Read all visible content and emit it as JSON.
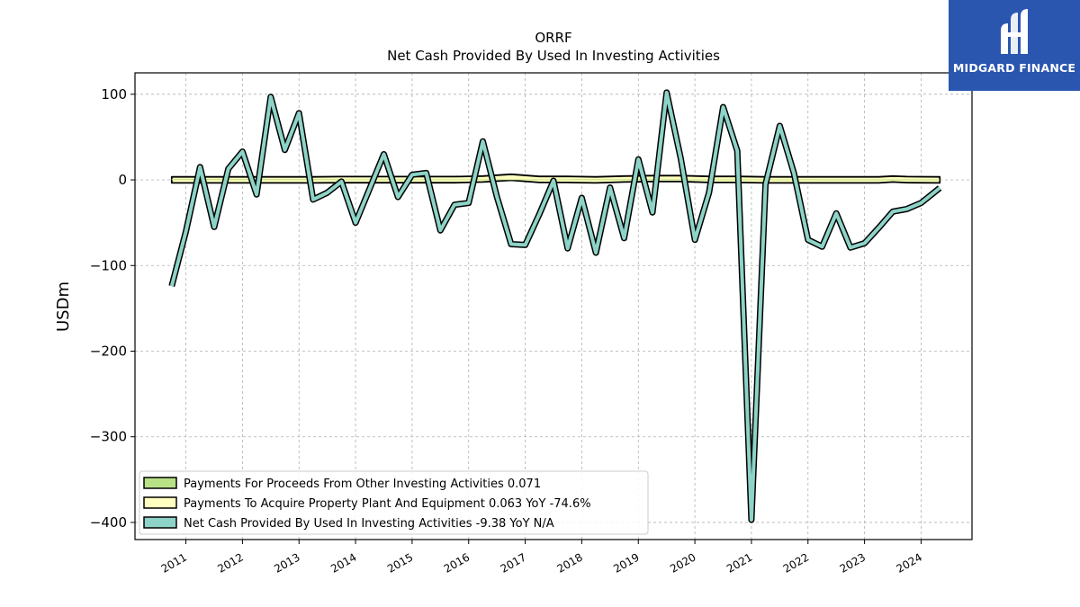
{
  "brand": {
    "name": "MIDGARD FINANCE",
    "color": "#2a56b0"
  },
  "chart_data": {
    "type": "line",
    "title": "ORRF",
    "subtitle": "Net Cash Provided By Used In Investing Activities",
    "ylabel": "USDm",
    "xlim": [
      2010.1,
      2024.9
    ],
    "ylim": [
      -420,
      125
    ],
    "yticks": [
      100,
      0,
      -100,
      -200,
      -300,
      -400
    ],
    "ytick_labels": [
      "100",
      "0",
      "−100",
      "−200",
      "−300",
      "−400"
    ],
    "xticks": [
      2011,
      2012,
      2013,
      2014,
      2015,
      2016,
      2017,
      2018,
      2019,
      2020,
      2021,
      2022,
      2023,
      2024
    ],
    "xtick_labels": [
      "2011",
      "2012",
      "2013",
      "2014",
      "2015",
      "2016",
      "2017",
      "2018",
      "2019",
      "2020",
      "2021",
      "2022",
      "2023",
      "2024"
    ],
    "grid": true,
    "legend_position": "lower-left",
    "series": [
      {
        "name": "Payments For Proceeds From Other Investing Activities",
        "legend": "Payments For Proceeds From Other Investing Activities  0.071",
        "style": "area",
        "color": "#b8e186",
        "x": [
          2010.75,
          2024.33
        ],
        "values": [
          0.5,
          0.071
        ]
      },
      {
        "name": "Payments To Acquire Property Plant And Equipment",
        "legend": "Payments To Acquire Property Plant And Equipment  0.063 YoY -74.6%",
        "style": "band",
        "color": "#ffffbf",
        "x": [
          2010.75,
          2011.25,
          2011.75,
          2012.25,
          2012.75,
          2013.25,
          2013.75,
          2014.25,
          2014.75,
          2015.25,
          2015.75,
          2016.25,
          2016.75,
          2017.25,
          2017.75,
          2018.25,
          2018.75,
          2019.25,
          2019.75,
          2020.25,
          2020.75,
          2021.25,
          2021.75,
          2022.25,
          2022.75,
          2023.25,
          2023.5,
          2023.75,
          2024.33
        ],
        "upper": [
          3.5,
          3.5,
          3.5,
          3.5,
          3.5,
          3.5,
          3.8,
          3.8,
          3.8,
          3.8,
          3.8,
          4.5,
          6.5,
          4.0,
          4.0,
          3.5,
          4.5,
          5.0,
          5.0,
          4.0,
          4.0,
          3.5,
          3.5,
          3.5,
          3.5,
          3.5,
          4.5,
          3.8,
          3.5
        ],
        "lower": [
          -3.5,
          -3.5,
          -3.5,
          -3.5,
          -3.5,
          -3.5,
          -3.3,
          -3.3,
          -3.3,
          -3.3,
          -3.3,
          -2.5,
          -0.5,
          -3.0,
          -3.0,
          -3.5,
          -2.5,
          -2.0,
          -2.0,
          -3.0,
          -3.0,
          -3.5,
          -3.5,
          -3.5,
          -3.5,
          -3.5,
          -2.5,
          -3.2,
          -3.5
        ]
      },
      {
        "name": "Net Cash Provided By Used In Investing Activities",
        "legend": "Net Cash Provided By Used In Investing Activities  -9.38 YoY N/A",
        "style": "line",
        "color": "#8dd3c7",
        "x": [
          2010.75,
          2011.0,
          2011.25,
          2011.5,
          2011.75,
          2012.0,
          2012.25,
          2012.5,
          2012.75,
          2013.0,
          2013.25,
          2013.5,
          2013.75,
          2014.0,
          2014.25,
          2014.5,
          2014.75,
          2015.0,
          2015.25,
          2015.5,
          2015.75,
          2016.0,
          2016.25,
          2016.5,
          2016.75,
          2017.0,
          2017.25,
          2017.5,
          2017.75,
          2018.0,
          2018.25,
          2018.5,
          2018.75,
          2019.0,
          2019.25,
          2019.5,
          2019.75,
          2020.0,
          2020.25,
          2020.5,
          2020.75,
          2021.0,
          2021.25,
          2021.5,
          2021.75,
          2022.0,
          2022.25,
          2022.5,
          2022.75,
          2023.0,
          2023.25,
          2023.5,
          2023.75,
          2024.0,
          2024.33
        ],
        "values": [
          -124,
          -60,
          15,
          -55,
          13,
          33,
          -17,
          97,
          35,
          78,
          -23,
          -15,
          -2,
          -50,
          -10,
          30,
          -20,
          6,
          8,
          -59,
          -29,
          -27,
          45,
          -20,
          -75,
          -76,
          -40,
          -1,
          -80,
          -21,
          -85,
          -9,
          -68,
          24,
          -38,
          102,
          25,
          -70,
          -15,
          85,
          34,
          -397,
          -5,
          63,
          8,
          -70,
          -78,
          -39,
          -79,
          -74,
          -56,
          -37,
          -34,
          -27,
          -9.38
        ]
      }
    ]
  }
}
